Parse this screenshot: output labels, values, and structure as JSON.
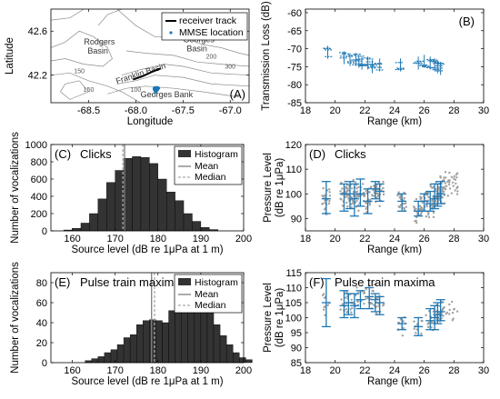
{
  "chart_data": [
    {
      "panel": "(A)",
      "type": "scatter",
      "xlabel": "Longitude",
      "ylabel": "Latitude",
      "xlim": [
        -68.9,
        -66.8
      ],
      "ylim": [
        41.95,
        42.8
      ],
      "xticks": [
        "-68.5",
        "-68.0",
        "-67.5",
        "-67.0"
      ],
      "yticks": [
        "42.2",
        "42.6"
      ],
      "legend": [
        "receiver track",
        "MMSE location"
      ],
      "place_labels": [
        "Rodgers Basin",
        "Georges Basin",
        "Franklin Basin",
        "Georges Bank"
      ],
      "contour_labels": [
        "200",
        "300",
        "150",
        "100",
        "150"
      ],
      "receiver_track": [
        [
          -68.03,
          42.16
        ],
        [
          -67.93,
          42.19
        ],
        [
          -67.83,
          42.23
        ],
        [
          -67.74,
          42.26
        ]
      ],
      "mmse_cluster_center": [
        -67.78,
        42.08
      ],
      "colors": {
        "mmse": "#1f77b4",
        "track": "#000000",
        "contour": "#8c8c8c"
      }
    },
    {
      "panel": "(B)",
      "type": "scatter",
      "xlabel": "Range (km)",
      "ylabel": "Transmission Loss (dB)",
      "xlim": [
        18,
        30
      ],
      "ylim": [
        -85,
        -59
      ],
      "xticks": [
        "18",
        "20",
        "22",
        "24",
        "26",
        "28",
        "30"
      ],
      "yticks": [
        "-85",
        "-80",
        "-75",
        "-70",
        "-65",
        "-60"
      ],
      "x": [
        19.5,
        20.6,
        21.0,
        21.4,
        21.6,
        21.8,
        22.2,
        22.5,
        23.0,
        24.4,
        25.6,
        26.0,
        26.4,
        26.7,
        26.9,
        27.1
      ],
      "y": [
        -71,
        -72.5,
        -73,
        -73,
        -73.5,
        -74,
        -74,
        -75,
        -74.5,
        -74.5,
        -74,
        -73.5,
        -74,
        -74.5,
        -75,
        -75.5
      ],
      "colors": {
        "errorbar": "#1f77b4"
      }
    },
    {
      "panel": "(C)",
      "type": "bar",
      "annotation": "Clicks",
      "xlabel": "Source level (dB re 1μPa at 1 m)",
      "ylabel": "Number of vocalizations",
      "xlim": [
        155,
        200
      ],
      "ylim": [
        0,
        1000
      ],
      "xticks": [
        "160",
        "170",
        "180",
        "190",
        "200"
      ],
      "yticks": [
        "0",
        "200",
        "400",
        "600",
        "800",
        "1000"
      ],
      "bin_start": 158,
      "bin_width": 2,
      "values": [
        10,
        30,
        90,
        200,
        370,
        560,
        700,
        840,
        860,
        850,
        780,
        600,
        450,
        350,
        200,
        110,
        40,
        15
      ],
      "mean": 172.2,
      "median": 171.8,
      "legend": [
        "Histogram",
        "Mean",
        "Median"
      ],
      "colors": {
        "bars": "#333333",
        "mean": "#808080",
        "median": "#a9a9a9"
      }
    },
    {
      "panel": "(D)",
      "type": "scatter",
      "annotation": "Clicks",
      "xlabel": "Range (km)",
      "ylabel": "Pressure Level",
      "ylabel2": "(dB re 1μPa)",
      "xlim": [
        18,
        30
      ],
      "ylim": [
        85,
        120
      ],
      "xticks": [
        "18",
        "20",
        "22",
        "24",
        "26",
        "28",
        "30"
      ],
      "yticks": [
        "90",
        "100",
        "110",
        "120"
      ],
      "errorbars": [
        {
          "x": 19.4,
          "y": 98,
          "lo": 92,
          "hi": 105
        },
        {
          "x": 20.6,
          "y": 100,
          "lo": 93,
          "hi": 104
        },
        {
          "x": 21.0,
          "y": 100,
          "lo": 94,
          "hi": 105
        },
        {
          "x": 21.3,
          "y": 98,
          "lo": 91,
          "hi": 104
        },
        {
          "x": 21.7,
          "y": 100,
          "lo": 95,
          "hi": 106
        },
        {
          "x": 22.2,
          "y": 97,
          "lo": 92,
          "hi": 102
        },
        {
          "x": 22.7,
          "y": 102,
          "lo": 98,
          "hi": 105
        },
        {
          "x": 23.0,
          "y": 101,
          "lo": 97,
          "hi": 104
        },
        {
          "x": 24.5,
          "y": 97,
          "lo": 93,
          "hi": 100
        },
        {
          "x": 25.6,
          "y": 93,
          "lo": 91,
          "hi": 97
        },
        {
          "x": 26.0,
          "y": 97,
          "lo": 93,
          "hi": 100
        },
        {
          "x": 26.4,
          "y": 96,
          "lo": 93,
          "hi": 101
        },
        {
          "x": 26.7,
          "y": 98,
          "lo": 94,
          "hi": 104
        },
        {
          "x": 26.9,
          "y": 99,
          "lo": 95,
          "hi": 104
        },
        {
          "x": 27.1,
          "y": 100,
          "lo": 96,
          "hi": 105
        }
      ],
      "colors": {
        "points": "#a0a0a0",
        "errorbar": "#1f77b4"
      }
    },
    {
      "panel": "(E)",
      "type": "bar",
      "annotation": "Pulse train maxima",
      "xlabel": "Source level (dB re 1μPa at 1 m)",
      "ylabel": "Number of vocalizations",
      "xlim": [
        155,
        200
      ],
      "ylim": [
        0,
        90
      ],
      "xticks": [
        "160",
        "170",
        "180",
        "190",
        "200"
      ],
      "yticks": [
        "0",
        "20",
        "40",
        "60",
        "80"
      ],
      "bin_start": 163,
      "bin_width": 1.5,
      "values": [
        2,
        4,
        6,
        10,
        13,
        18,
        25,
        28,
        38,
        42,
        43,
        42,
        40,
        52,
        62,
        70,
        84,
        78,
        66,
        52,
        38,
        27,
        18,
        10,
        5,
        3
      ],
      "mean": 178.5,
      "median": 179.2,
      "legend": [
        "Histogram",
        "Mean",
        "Median"
      ],
      "colors": {
        "bars": "#333333",
        "mean": "#808080",
        "median": "#a9a9a9"
      }
    },
    {
      "panel": "(F)",
      "type": "scatter",
      "annotation": "Pulse train maxima",
      "xlabel": "Range (km)",
      "ylabel": "Pressure Level",
      "ylabel2": "(dB re 1μPa)",
      "xlim": [
        18,
        30
      ],
      "ylim": [
        85,
        115
      ],
      "xticks": [
        "18",
        "20",
        "22",
        "24",
        "26",
        "28",
        "30"
      ],
      "yticks": [
        "85",
        "90",
        "95",
        "100",
        "105",
        "110",
        "115"
      ],
      "errorbars": [
        {
          "x": 19.4,
          "y": 105,
          "lo": 97,
          "hi": 113
        },
        {
          "x": 20.6,
          "y": 104,
          "lo": 100,
          "hi": 109
        },
        {
          "x": 20.9,
          "y": 105,
          "lo": 101,
          "hi": 108
        },
        {
          "x": 21.3,
          "y": 104,
          "lo": 100,
          "hi": 108
        },
        {
          "x": 21.7,
          "y": 106,
          "lo": 103,
          "hi": 109
        },
        {
          "x": 22.3,
          "y": 107,
          "lo": 103,
          "hi": 110
        },
        {
          "x": 22.7,
          "y": 106,
          "lo": 102,
          "hi": 108
        },
        {
          "x": 23.0,
          "y": 105,
          "lo": 101,
          "hi": 107
        },
        {
          "x": 24.5,
          "y": 98,
          "lo": 96,
          "hi": 100
        },
        {
          "x": 25.6,
          "y": 97,
          "lo": 94,
          "hi": 100
        },
        {
          "x": 26.4,
          "y": 99,
          "lo": 96,
          "hi": 103
        },
        {
          "x": 26.7,
          "y": 100,
          "lo": 96,
          "hi": 104
        },
        {
          "x": 26.9,
          "y": 101,
          "lo": 98,
          "hi": 105
        },
        {
          "x": 27.1,
          "y": 102,
          "lo": 99,
          "hi": 106
        }
      ],
      "colors": {
        "points": "#a0a0a0",
        "errorbar": "#1f77b4"
      }
    }
  ]
}
